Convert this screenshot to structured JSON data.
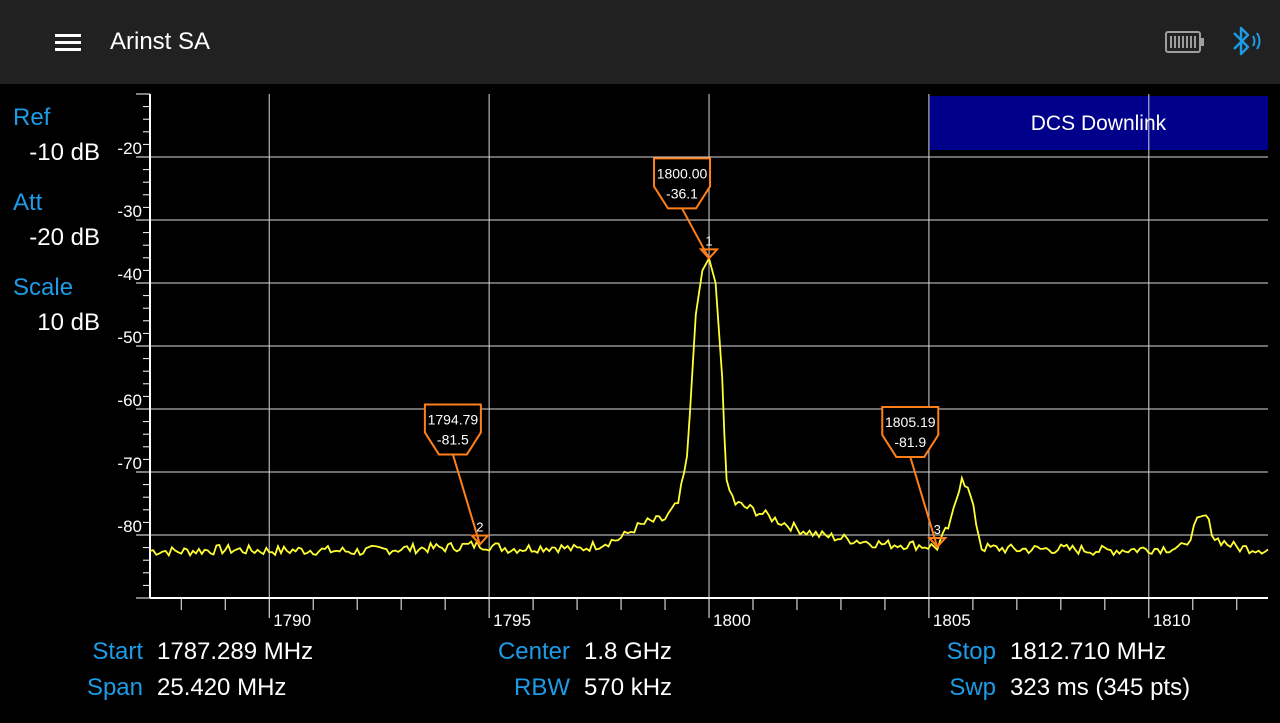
{
  "app": {
    "title": "Arinst SA",
    "menu_icon": "hamburger-menu-icon",
    "battery_icon": "battery-icon",
    "bluetooth_icon": "bluetooth-icon"
  },
  "settings": {
    "ref_label": "Ref",
    "ref_value": "-10 dB",
    "att_label": "Att",
    "att_value": "-20 dB",
    "scale_label": "Scale",
    "scale_value": "10  dB"
  },
  "band_label": "DCS Downlink",
  "colors": {
    "accent": "#1e9be6",
    "trace": "#ffff33",
    "marker": "#ff7f1a",
    "band": "#00008b"
  },
  "chart_data": {
    "type": "line",
    "xlim": [
      1787.289,
      1812.71
    ],
    "ylim": [
      -90,
      -10
    ],
    "x_ticks": [
      1790,
      1795,
      1800,
      1805,
      1810
    ],
    "y_ticks": [
      -20,
      -30,
      -40,
      -50,
      -60,
      -70,
      -80
    ],
    "grid": true,
    "band": {
      "label": "DCS Downlink",
      "x_start": 1805,
      "x_end": 1812.71
    },
    "trace_points": [
      [
        1787.29,
        -82.5
      ],
      [
        1788.0,
        -82.6
      ],
      [
        1789.0,
        -82.3
      ],
      [
        1790.0,
        -82.5
      ],
      [
        1791.0,
        -82.4
      ],
      [
        1792.0,
        -82.6
      ],
      [
        1793.0,
        -82.2
      ],
      [
        1794.0,
        -82.0
      ],
      [
        1794.79,
        -81.5
      ],
      [
        1795.5,
        -82.2
      ],
      [
        1796.5,
        -81.9
      ],
      [
        1797.0,
        -82.3
      ],
      [
        1797.5,
        -81.5
      ],
      [
        1798.0,
        -80.5
      ],
      [
        1798.3,
        -79.0
      ],
      [
        1798.6,
        -78.0
      ],
      [
        1799.0,
        -77.5
      ],
      [
        1799.3,
        -75.0
      ],
      [
        1799.5,
        -68.0
      ],
      [
        1799.7,
        -45.0
      ],
      [
        1799.85,
        -38.0
      ],
      [
        1800.0,
        -36.1
      ],
      [
        1800.15,
        -40.0
      ],
      [
        1800.3,
        -55.0
      ],
      [
        1800.4,
        -72.0
      ],
      [
        1800.6,
        -75.0
      ],
      [
        1801.0,
        -76.0
      ],
      [
        1801.5,
        -77.5
      ],
      [
        1802.0,
        -79.0
      ],
      [
        1802.5,
        -80.0
      ],
      [
        1803.0,
        -80.5
      ],
      [
        1803.5,
        -81.0
      ],
      [
        1804.0,
        -81.5
      ],
      [
        1804.5,
        -81.5
      ],
      [
        1805.19,
        -81.9
      ],
      [
        1805.5,
        -78.0
      ],
      [
        1805.75,
        -70.5
      ],
      [
        1805.95,
        -74.0
      ],
      [
        1806.2,
        -82.0
      ],
      [
        1807.0,
        -82.3
      ],
      [
        1808.0,
        -82.2
      ],
      [
        1809.0,
        -82.5
      ],
      [
        1810.0,
        -82.2
      ],
      [
        1810.8,
        -82.0
      ],
      [
        1811.1,
        -78.0
      ],
      [
        1811.3,
        -77.0
      ],
      [
        1811.5,
        -80.5
      ],
      [
        1812.0,
        -82.0
      ],
      [
        1812.71,
        -82.3
      ]
    ],
    "markers": [
      {
        "id": "1",
        "freq": "1800.00",
        "level": "-36.1",
        "x": 1800.0,
        "y": -36.1
      },
      {
        "id": "2",
        "freq": "1794.79",
        "level": "-81.5",
        "x": 1794.79,
        "y": -81.5
      },
      {
        "id": "3",
        "freq": "1805.19",
        "level": "-81.9",
        "x": 1805.19,
        "y": -81.9
      }
    ]
  },
  "bottom": {
    "start_key": "Start",
    "start_val": "1787.289 MHz",
    "span_key": "Span",
    "span_val": "25.420 MHz",
    "center_key": "Center",
    "center_val": "1.8 GHz",
    "rbw_key": "RBW",
    "rbw_val": "570 kHz",
    "stop_key": "Stop",
    "stop_val": "1812.710 MHz",
    "swp_key": "Swp",
    "swp_val": "323 ms (345 pts)"
  }
}
